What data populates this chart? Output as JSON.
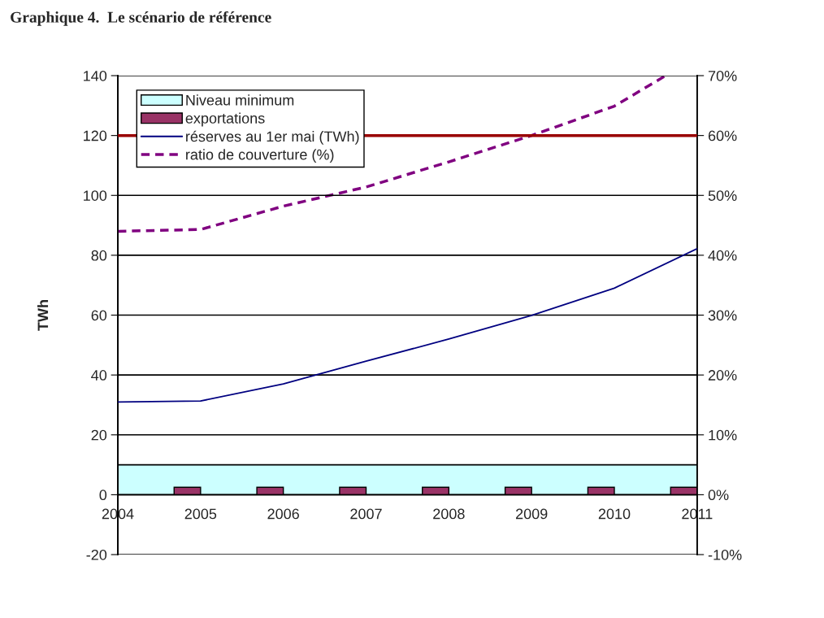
{
  "chart_data": {
    "type": "line",
    "title": "Graphique 4.  Le scénario de référence",
    "ylabel": "TWh",
    "xlim": [
      2004,
      2011
    ],
    "xticks": [
      2004,
      2005,
      2006,
      2007,
      2008,
      2009,
      2010,
      2011
    ],
    "ylim": [
      -20,
      140
    ],
    "yticks": [
      -20,
      0,
      20,
      40,
      60,
      80,
      100,
      120,
      140
    ],
    "y2lim": [
      -10,
      70
    ],
    "y2ticks": [
      {
        "value": -10,
        "label": "-10%"
      },
      {
        "value": 0,
        "label": "0%"
      },
      {
        "value": 10,
        "label": "10%"
      },
      {
        "value": 20,
        "label": "20%"
      },
      {
        "value": 30,
        "label": "30%"
      },
      {
        "value": 40,
        "label": "40%"
      },
      {
        "value": 50,
        "label": "50%"
      },
      {
        "value": 60,
        "label": "60%"
      },
      {
        "value": 70,
        "label": "70%"
      }
    ],
    "grid": "y",
    "legend": "top left",
    "ref_lines": [
      {
        "axis": "y",
        "value": 120,
        "color": "#990000"
      }
    ],
    "series": [
      {
        "name": "Niveau minimum",
        "type": "area",
        "color": "#ccffff",
        "x": [
          2004,
          2011
        ],
        "values": [
          10,
          10
        ]
      },
      {
        "name": "exportations",
        "type": "bar",
        "color": "#993366",
        "x": [
          2004.84,
          2005.84,
          2006.84,
          2007.84,
          2008.84,
          2009.84,
          2010.84
        ],
        "values": [
          2.5,
          2.5,
          2.5,
          2.5,
          2.5,
          2.5,
          2.5
        ]
      },
      {
        "name": "réserves au 1er mai (TWh)",
        "color": "#000080",
        "line_style": "solid",
        "x": [
          2004,
          2005,
          2006,
          2007,
          2008,
          2009,
          2010,
          2011
        ],
        "values": [
          31,
          31.3,
          37,
          44.6,
          52,
          59.9,
          69,
          82.2
        ]
      },
      {
        "name": "ratio de couverture (%)",
        "axis": "y2",
        "color": "#800080",
        "line_style": "dashed",
        "x": [
          2004,
          2005,
          2006,
          2007,
          2008,
          2009,
          2010,
          2010.62
        ],
        "values": [
          44,
          44.3,
          48.2,
          51.4,
          55.6,
          60,
          64.9,
          70
        ]
      }
    ]
  }
}
